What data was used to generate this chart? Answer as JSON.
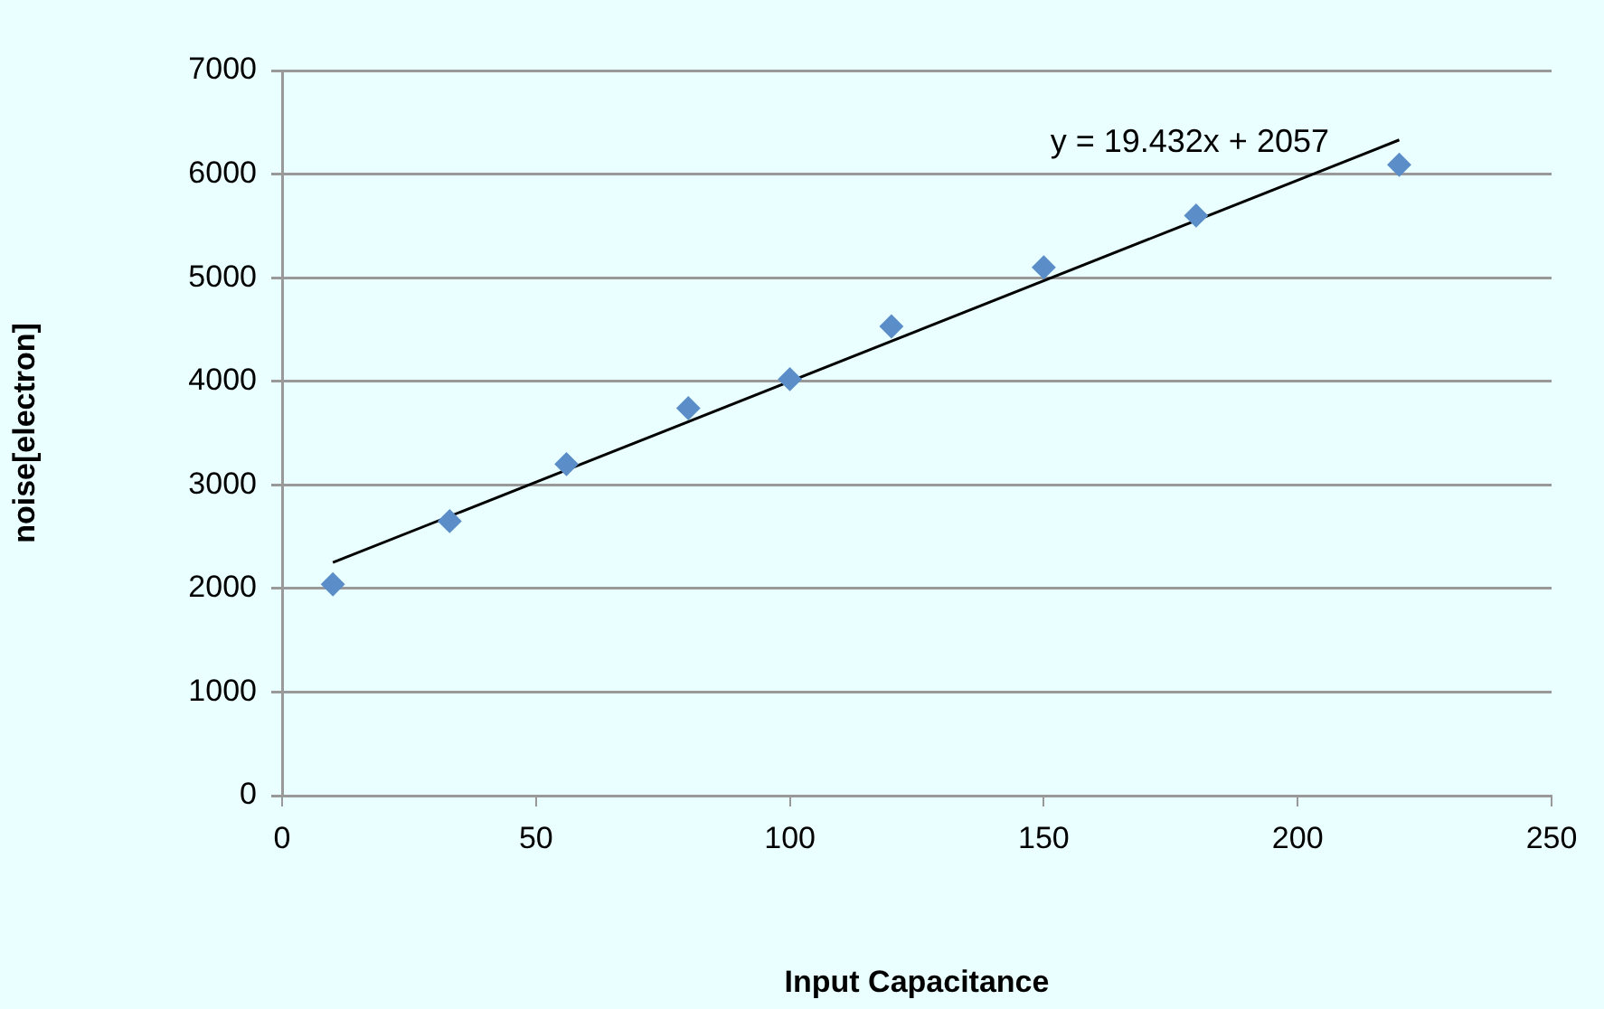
{
  "chart_data": {
    "type": "scatter",
    "xlabel": "Input Capacitance",
    "ylabel": "noise[electron]",
    "x": [
      10,
      33,
      56,
      80,
      100,
      120,
      150,
      180,
      220
    ],
    "series": [
      {
        "color": "#5b8ec8",
        "values": [
          2040,
          2650,
          3200,
          3740,
          4020,
          4530,
          5100,
          5600,
          6090
        ]
      },
      {
        "type": "line",
        "color": "#000000",
        "x": [
          10,
          220
        ],
        "values": [
          2250,
          6330
        ],
        "marker": "none"
      }
    ],
    "xlim": [
      0,
      250
    ],
    "xticks": [
      0,
      50,
      100,
      150,
      200,
      250
    ],
    "ylim": [
      0,
      7000
    ],
    "yticks": [
      0,
      1000,
      2000,
      3000,
      4000,
      5000,
      6000,
      7000
    ],
    "grid": "y",
    "legend": false,
    "marker": "diamond",
    "annotations": [
      "y = 19.432x + 2057"
    ]
  }
}
